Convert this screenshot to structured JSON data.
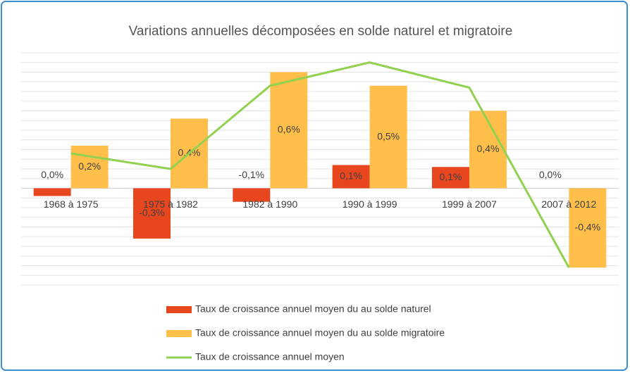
{
  "chart_data": {
    "type": "bar_line",
    "title": "Variations annuelles décomposées en solde naturel et migratoire",
    "categories": [
      "1968 à 1975",
      "1975 à 1982",
      "1982 à 1990",
      "1990 à 1999",
      "1999 à 2007",
      "2007 à 2012"
    ],
    "series": [
      {
        "name": "Taux de croissance annuel moyen du au solde naturel",
        "type": "bar",
        "color": "#e8461e",
        "values": [
          -0.04,
          -0.26,
          -0.07,
          0.12,
          0.11,
          0.0
        ],
        "value_labels": [
          "0,0%",
          "-0,3%",
          "-0,1%",
          "0,1%",
          "0,1%",
          "0,0%"
        ]
      },
      {
        "name": "Taux de croissance annuel moyen du au solde migratoire",
        "type": "bar",
        "color": "#ffbf4a",
        "values": [
          0.22,
          0.36,
          0.6,
          0.53,
          0.4,
          -0.41
        ],
        "value_labels": [
          "0,2%",
          "0,4%",
          "0,6%",
          "0,5%",
          "0,4%",
          "-0,4%"
        ]
      },
      {
        "name": "Taux de croissance annuel moyen",
        "type": "line",
        "color": "#92d050",
        "values": [
          0.18,
          0.1,
          0.53,
          0.65,
          0.52,
          -0.41
        ]
      }
    ],
    "ylim": [
      -0.5,
      0.7
    ],
    "yticks": [
      -0.5,
      -0.45,
      -0.4,
      -0.35,
      -0.3,
      -0.25,
      -0.2,
      -0.15,
      -0.1,
      -0.05,
      0,
      0.05,
      0.1,
      0.15,
      0.2,
      0.25,
      0.3,
      0.35,
      0.4,
      0.45,
      0.5,
      0.55,
      0.6,
      0.65,
      0.7
    ],
    "grid": true
  }
}
